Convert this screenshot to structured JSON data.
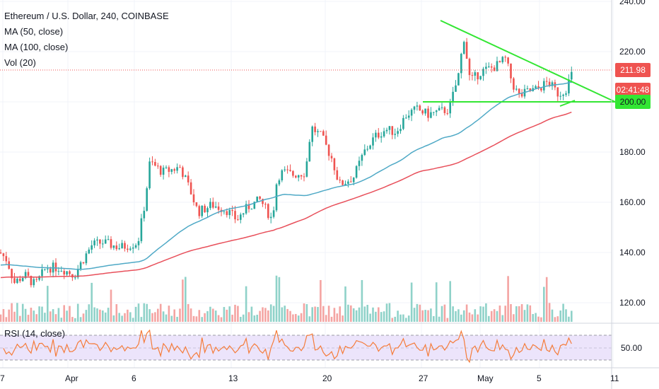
{
  "chart_data": {
    "type": "candlestick",
    "title": "Ethereum / U.S. Dollar, 240, COINBASE",
    "indicators": [
      "MA (50, close)",
      "MA (100, close)",
      "Vol (20)"
    ],
    "rsi_label": "RSI (14, close)",
    "y_ticks": [
      "240.00",
      "220.00",
      "200.00",
      "180.00",
      "160.00",
      "140.00",
      "120.00"
    ],
    "rsi_ticks": [
      "50.00"
    ],
    "x_ticks": [
      "7",
      "Apr",
      "6",
      "13",
      "20",
      "27",
      "May",
      "5",
      "11"
    ],
    "last_price": "211.98",
    "countdown": "02:41:48",
    "support_level": "200.00",
    "ylim": [
      115,
      242
    ],
    "colors": {
      "up": "#26a69a",
      "down": "#ef5350",
      "ma50": "#4fa9c6",
      "ma100": "#e8505b",
      "trend": "#33e633",
      "rsi": "#f57c3a",
      "rsi_band": "#e9defb"
    }
  }
}
